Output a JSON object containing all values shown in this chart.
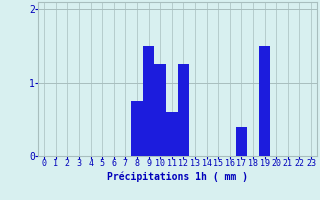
{
  "hours": [
    0,
    1,
    2,
    3,
    4,
    5,
    6,
    7,
    8,
    9,
    10,
    11,
    12,
    13,
    14,
    15,
    16,
    17,
    18,
    19,
    20,
    21,
    22,
    23
  ],
  "values": [
    0.0,
    0.0,
    0.0,
    0.0,
    0.0,
    0.0,
    0.0,
    0.0,
    0.75,
    1.5,
    1.25,
    0.6,
    1.25,
    0.0,
    0.0,
    0.0,
    0.0,
    0.4,
    0.0,
    1.5,
    0.0,
    0.0,
    0.0,
    0.0
  ],
  "bar_color": "#1c1cdd",
  "background_color": "#d8f0f0",
  "grid_color": "#a8bebe",
  "axis_label_color": "#0000bb",
  "tick_color": "#0000bb",
  "xlabel": "Précipitations 1h ( mm )",
  "ylim": [
    0,
    2.1
  ],
  "yticks": [
    0,
    1,
    2
  ],
  "xlim": [
    -0.5,
    23.5
  ],
  "xlabel_fontsize": 7.0,
  "tick_fontsize": 6.0
}
